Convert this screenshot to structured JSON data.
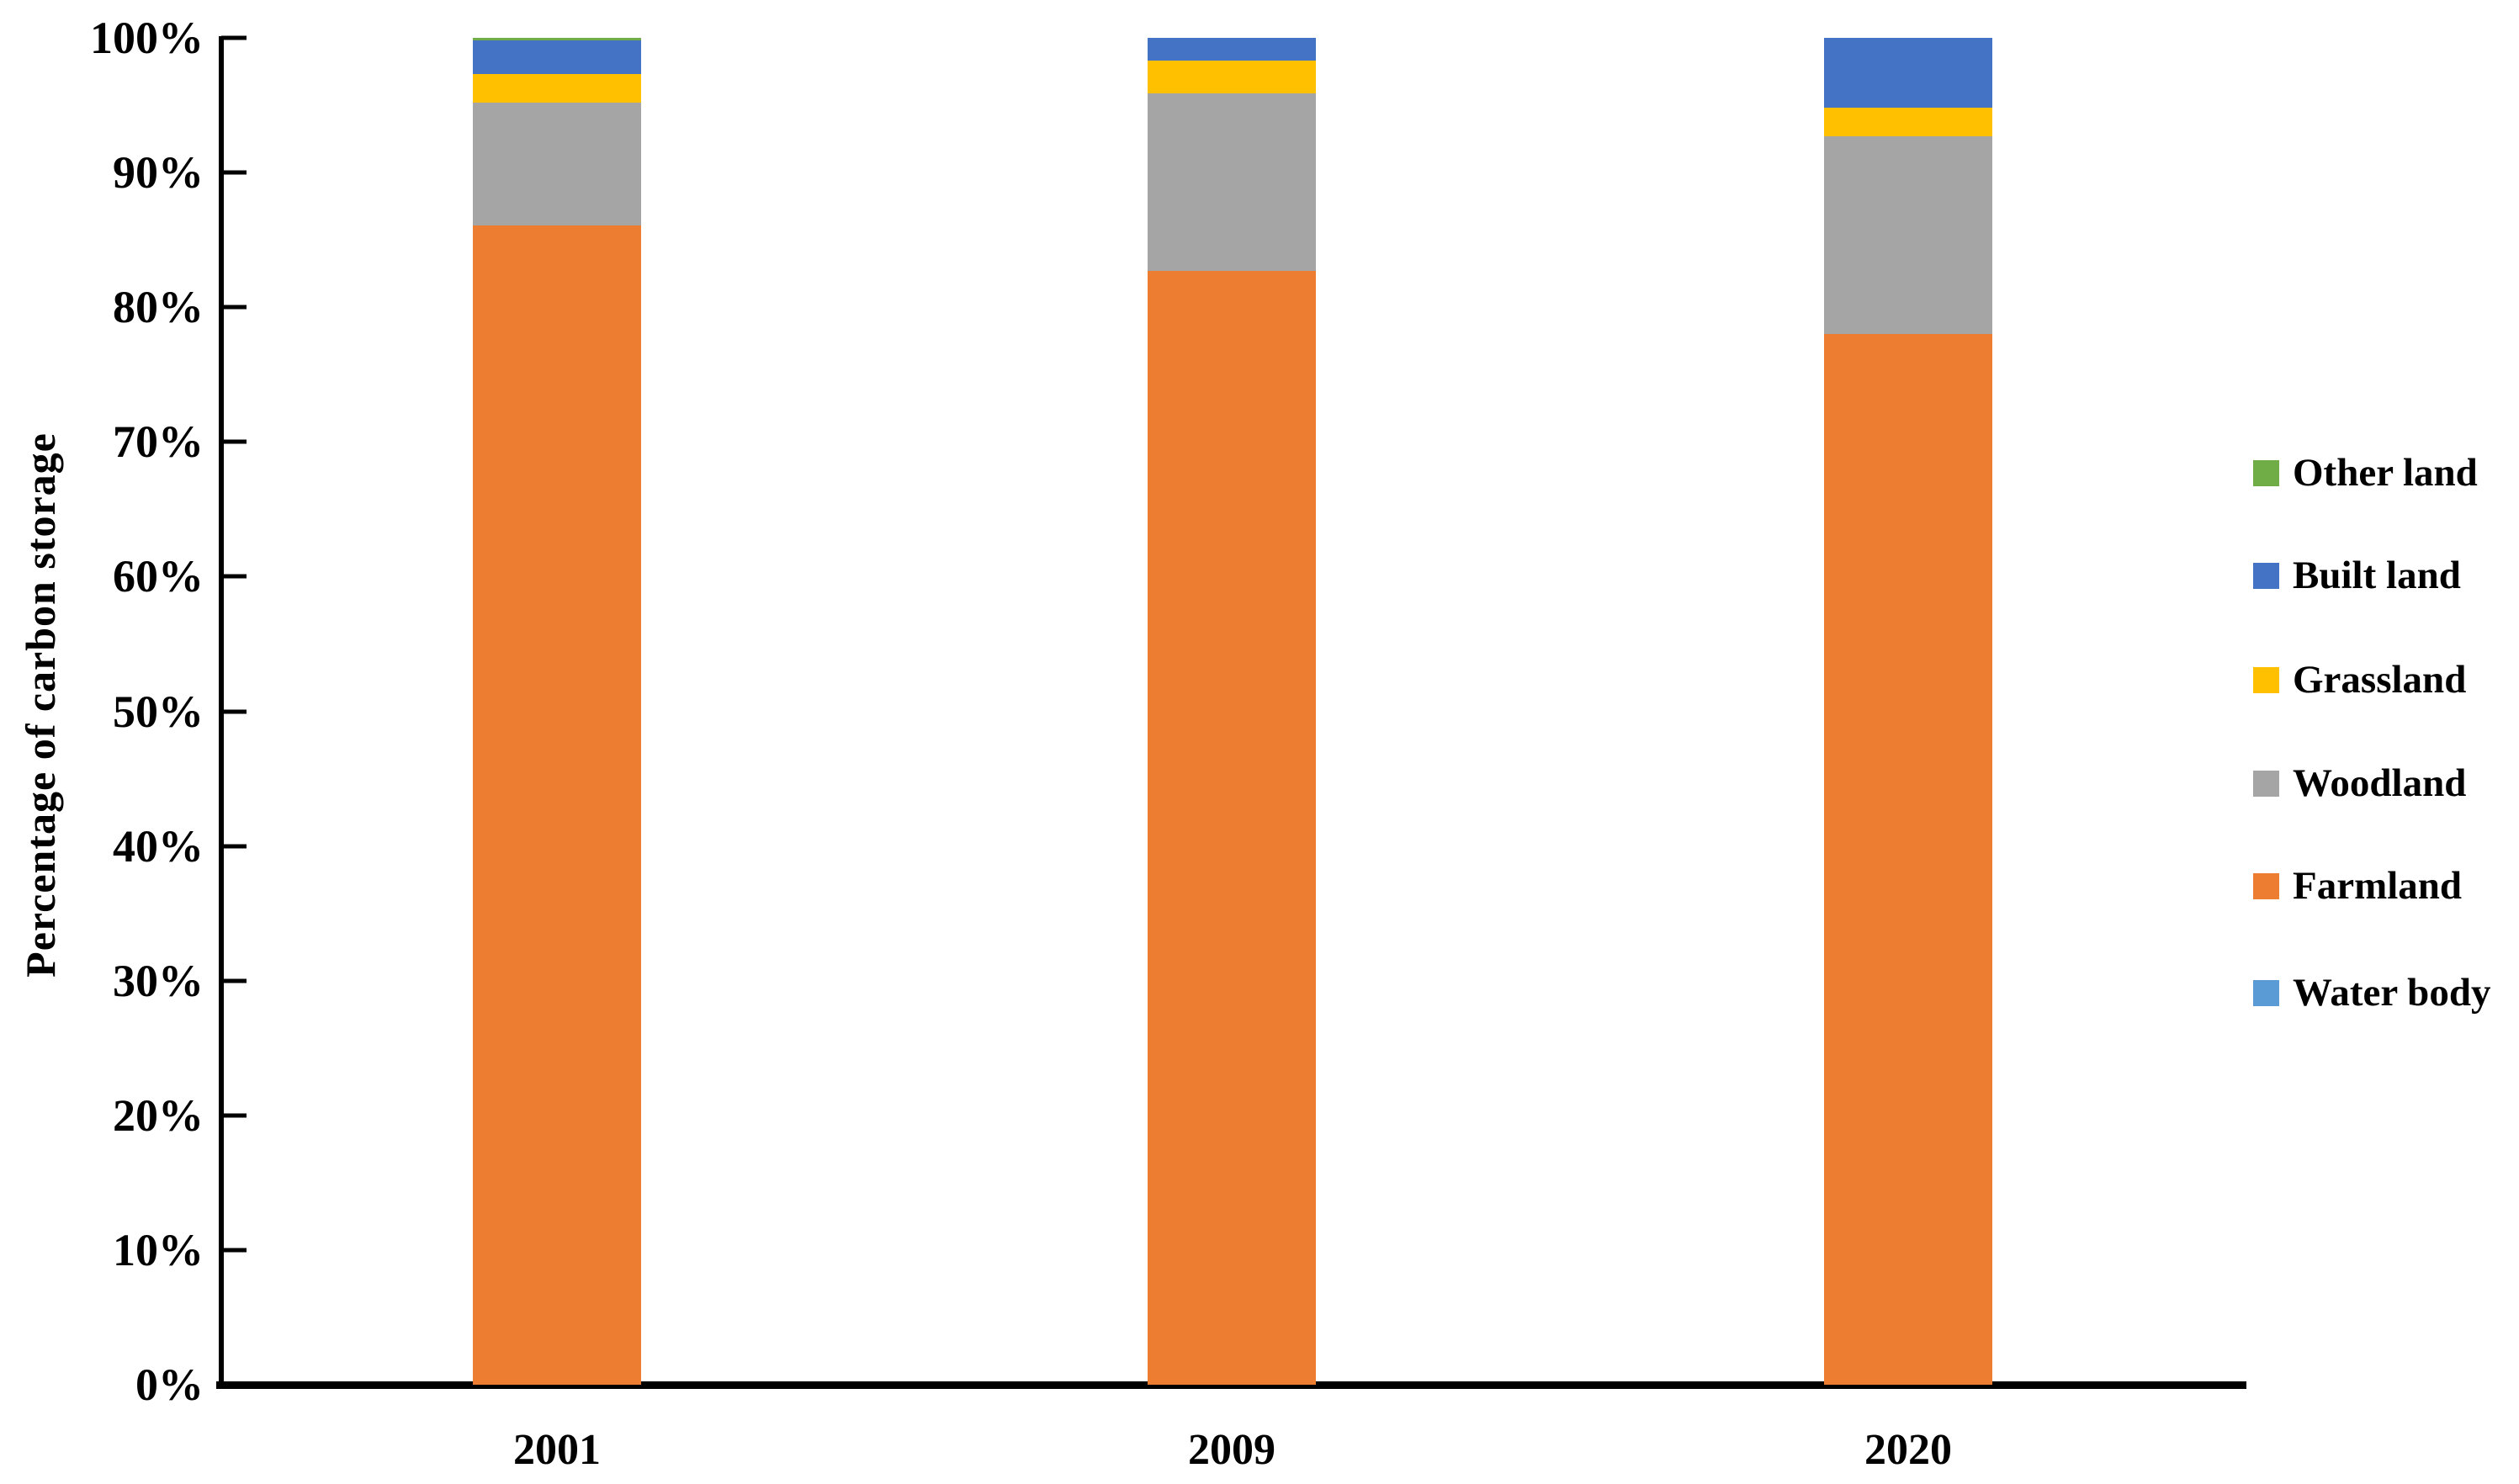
{
  "chart_data": {
    "type": "bar",
    "stacked": true,
    "title": "",
    "ylabel": "Percentage of carbon storage",
    "xlabel": "",
    "ylim": [
      0,
      100
    ],
    "grid": false,
    "legend_position": "right",
    "categories": [
      "2001",
      "2009",
      "2020"
    ],
    "ytick_labels": [
      "0%",
      "10%",
      "20%",
      "30%",
      "40%",
      "50%",
      "60%",
      "70%",
      "80%",
      "90%",
      "100%"
    ],
    "ytick_values": [
      0,
      10,
      20,
      30,
      40,
      50,
      60,
      70,
      80,
      90,
      100
    ],
    "series": [
      {
        "name": "Water body",
        "color": "#5B9BD5",
        "values": [
          0.0,
          0.0,
          0.0
        ]
      },
      {
        "name": "Farmland",
        "color": "#ED7D31",
        "values": [
          86.1,
          82.7,
          78.0
        ]
      },
      {
        "name": "Woodland",
        "color": "#A5A5A5",
        "values": [
          9.1,
          13.2,
          14.7
        ]
      },
      {
        "name": "Grassland",
        "color": "#FFC000",
        "values": [
          2.1,
          2.4,
          2.1
        ]
      },
      {
        "name": "Built land",
        "color": "#4472C4",
        "values": [
          2.5,
          1.7,
          5.2
        ]
      },
      {
        "name": "Other land",
        "color": "#70AD47",
        "values": [
          0.2,
          0.0,
          0.0
        ]
      }
    ],
    "legend_order": [
      "Other land",
      "Built land",
      "Grassland",
      "Woodland",
      "Farmland",
      "Water body"
    ],
    "axis_color": "#000000"
  }
}
